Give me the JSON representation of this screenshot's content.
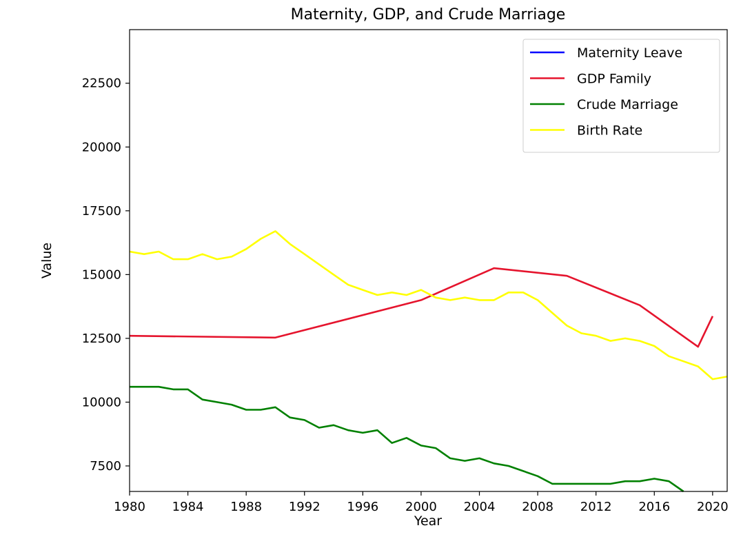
{
  "chart_data": {
    "type": "line",
    "title": "Maternity, GDP, and Crude Marriage",
    "xlabel": "Year",
    "ylabel": "Value",
    "xlim": [
      1980,
      2021
    ],
    "ylim": [
      6500,
      24600
    ],
    "xticks": [
      1980,
      1984,
      1988,
      1992,
      1996,
      2000,
      2004,
      2008,
      2012,
      2016,
      2020
    ],
    "yticks": [
      7500,
      10000,
      12500,
      15000,
      17500,
      20000,
      22500
    ],
    "grid": false,
    "legend_position": "top-right",
    "series": [
      {
        "name": "Maternity Leave",
        "color": "#0000ff",
        "x": [],
        "y": []
      },
      {
        "name": "GDP Family",
        "color": "#e5142d",
        "x": [
          1980,
          1990,
          2000,
          2005,
          2010,
          2015,
          2019,
          2020
        ],
        "y": [
          12600,
          12530,
          14000,
          15250,
          14950,
          13800,
          12170,
          13370
        ]
      },
      {
        "name": "Crude Marriage",
        "color": "#008000",
        "x": [
          1980,
          1981,
          1982,
          1983,
          1984,
          1985,
          1986,
          1987,
          1988,
          1989,
          1990,
          1991,
          1992,
          1993,
          1994,
          1995,
          1996,
          1997,
          1998,
          1999,
          2000,
          2001,
          2002,
          2003,
          2004,
          2005,
          2006,
          2007,
          2008,
          2009,
          2010,
          2011,
          2012,
          2013,
          2014,
          2015,
          2016,
          2017,
          2018
        ],
        "y": [
          10600,
          10600,
          10600,
          10500,
          10500,
          10100,
          10000,
          9900,
          9700,
          9700,
          9800,
          9400,
          9300,
          9000,
          9100,
          8900,
          8800,
          8900,
          8400,
          8600,
          8300,
          8200,
          7800,
          7700,
          7800,
          7600,
          7500,
          7300,
          7100,
          6800,
          6800,
          6800,
          6800,
          6800,
          6900,
          6900,
          7000,
          6900,
          6500
        ]
      },
      {
        "name": "Birth Rate",
        "color": "#ffff00",
        "x": [
          1980,
          1981,
          1982,
          1983,
          1984,
          1985,
          1986,
          1987,
          1988,
          1989,
          1990,
          1991,
          1992,
          1993,
          1994,
          1995,
          1996,
          1997,
          1998,
          1999,
          2000,
          2001,
          2002,
          2003,
          2004,
          2005,
          2006,
          2007,
          2008,
          2009,
          2010,
          2011,
          2012,
          2013,
          2014,
          2015,
          2016,
          2017,
          2018,
          2019,
          2020,
          2021
        ],
        "y": [
          15900,
          15800,
          15900,
          15600,
          15600,
          15800,
          15600,
          15700,
          16000,
          16400,
          16700,
          16200,
          15800,
          15400,
          15000,
          14600,
          14400,
          14200,
          14300,
          14200,
          14400,
          14100,
          14000,
          14100,
          14000,
          14000,
          14300,
          14300,
          14000,
          13500,
          13000,
          12700,
          12600,
          12400,
          12500,
          12400,
          12200,
          11800,
          11600,
          11400,
          10900,
          11000
        ]
      }
    ]
  }
}
